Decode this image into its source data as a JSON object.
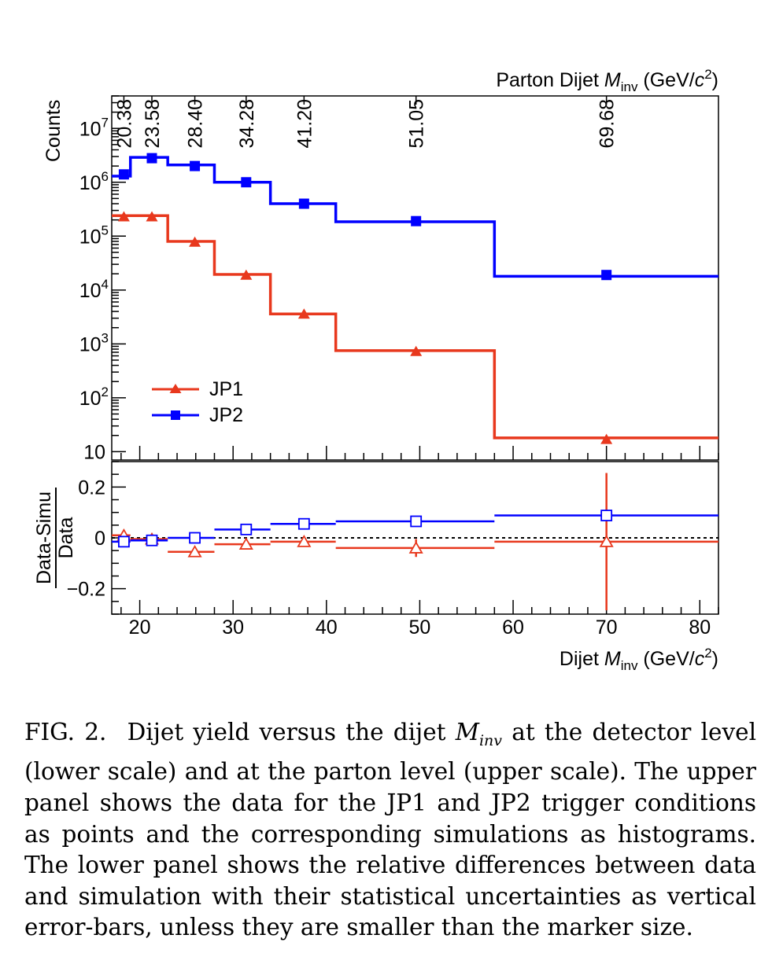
{
  "chart_data": [
    {
      "panel": "upper",
      "type": "line",
      "xlabel": "",
      "ylabel": "Counts",
      "top_axis_label": {
        "prefix": "Parton Dijet ",
        "symbol": "M",
        "sub": "inv",
        "unit_pre": " (GeV/",
        "unit_c": "c",
        "unit_exp": "2",
        "unit_post": ")"
      },
      "top_axis_ticks": [
        {
          "label": "20.38",
          "x": 18.3
        },
        {
          "label": "23.58",
          "x": 21.3
        },
        {
          "label": "28.40",
          "x": 25.9
        },
        {
          "label": "34.28",
          "x": 31.4
        },
        {
          "label": "41.20",
          "x": 37.6
        },
        {
          "label": "51.05",
          "x": 49.6
        },
        {
          "label": "69.68",
          "x": 70.0
        }
      ],
      "ylim": [
        7,
        40000000
      ],
      "log_y": true,
      "yticks": [
        {
          "base": "10",
          "exp": "",
          "value": 10
        },
        {
          "base": "10",
          "exp": "2",
          "value": 100
        },
        {
          "base": "10",
          "exp": "3",
          "value": 1000
        },
        {
          "base": "10",
          "exp": "4",
          "value": 10000
        },
        {
          "base": "10",
          "exp": "5",
          "value": 100000
        },
        {
          "base": "10",
          "exp": "6",
          "value": 1000000
        },
        {
          "base": "10",
          "exp": "7",
          "value": 10000000
        }
      ],
      "xlim": [
        17,
        82
      ],
      "bin_edges": [
        17,
        19,
        23,
        28,
        34,
        41,
        58,
        82
      ],
      "legend": {
        "position": "bottom-left"
      },
      "series": [
        {
          "name": "JP1",
          "color": "#e8381d",
          "marker": "triangle",
          "simulation_hist": [
            240000,
            240000,
            80000,
            19500,
            3600,
            750,
            18
          ],
          "data_points": [
            {
              "x": 18.3,
              "y": 230000
            },
            {
              "x": 21.3,
              "y": 230000
            },
            {
              "x": 25.9,
              "y": 78000
            },
            {
              "x": 31.4,
              "y": 19000
            },
            {
              "x": 37.6,
              "y": 3600
            },
            {
              "x": 49.6,
              "y": 730
            },
            {
              "x": 70.0,
              "y": 17
            }
          ]
        },
        {
          "name": "JP2",
          "color": "#0000ff",
          "marker": "square",
          "simulation_hist": [
            1300000,
            2900000,
            2100000,
            1000000,
            400000,
            185000,
            18000
          ],
          "data_points": [
            {
              "x": 18.3,
              "y": 1400000
            },
            {
              "x": 21.3,
              "y": 2800000
            },
            {
              "x": 25.9,
              "y": 2000000
            },
            {
              "x": 31.4,
              "y": 1000000
            },
            {
              "x": 37.6,
              "y": 400000
            },
            {
              "x": 49.6,
              "y": 190000
            },
            {
              "x": 70.0,
              "y": 19000
            }
          ]
        }
      ]
    },
    {
      "panel": "lower",
      "type": "scatter",
      "xlabel": {
        "prefix": "Dijet ",
        "symbol": "M",
        "sub": "inv",
        "unit_pre": " (GeV/",
        "unit_c": "c",
        "unit_exp": "2",
        "unit_post": ")"
      },
      "ylabel": {
        "numerator": "Data-Simu",
        "denominator": "Data"
      },
      "xlim": [
        17,
        82
      ],
      "ylim": [
        -0.3,
        0.3
      ],
      "xticks": [
        20,
        30,
        40,
        50,
        60,
        70,
        80
      ],
      "yticks": [
        {
          "label": "0.2",
          "value": 0.2
        },
        {
          "label": "0",
          "value": 0
        },
        {
          "label": "−0.2",
          "value": -0.2
        }
      ],
      "reference_line": 0,
      "bin_edges": [
        17,
        19,
        23,
        28,
        34,
        41,
        58,
        82
      ],
      "series": [
        {
          "name": "JP1",
          "color": "#e8381d",
          "marker": "open-triangle",
          "points": [
            {
              "x": 18.3,
              "y": 0.01,
              "err": 0.01
            },
            {
              "x": 21.3,
              "y": -0.005,
              "err": 0.01
            },
            {
              "x": 25.9,
              "y": -0.055,
              "err": 0.01
            },
            {
              "x": 31.4,
              "y": -0.025,
              "err": 0.01
            },
            {
              "x": 37.6,
              "y": -0.015,
              "err": 0.02
            },
            {
              "x": 49.6,
              "y": -0.04,
              "err": 0.035
            },
            {
              "x": 70.0,
              "y": -0.015,
              "err": 0.27
            }
          ]
        },
        {
          "name": "JP2",
          "color": "#0000ff",
          "marker": "open-square",
          "points": [
            {
              "x": 18.3,
              "y": -0.015,
              "err": 0.005
            },
            {
              "x": 21.3,
              "y": -0.01,
              "err": 0.005
            },
            {
              "x": 25.9,
              "y": 0.0,
              "err": 0.005
            },
            {
              "x": 31.4,
              "y": 0.033,
              "err": 0.005
            },
            {
              "x": 37.6,
              "y": 0.055,
              "err": 0.005
            },
            {
              "x": 49.6,
              "y": 0.065,
              "err": 0.005
            },
            {
              "x": 70.0,
              "y": 0.088,
              "err": 0.01
            }
          ]
        }
      ]
    }
  ],
  "caption": {
    "label": "FIG. 2.",
    "text_before_math": "Dijet yield versus the dijet ",
    "math_symbol": "M",
    "math_sub": "inv",
    "text_after_math": " at the detector level (lower scale) and at the parton level (upper scale). The upper panel shows the data for the JP1 and JP2 trigger conditions as points and the corresponding simulations as histograms. The lower panel shows the relative differences between data and simulation with their statistical uncertainties as vertical error-bars, unless they are smaller than the marker size."
  }
}
